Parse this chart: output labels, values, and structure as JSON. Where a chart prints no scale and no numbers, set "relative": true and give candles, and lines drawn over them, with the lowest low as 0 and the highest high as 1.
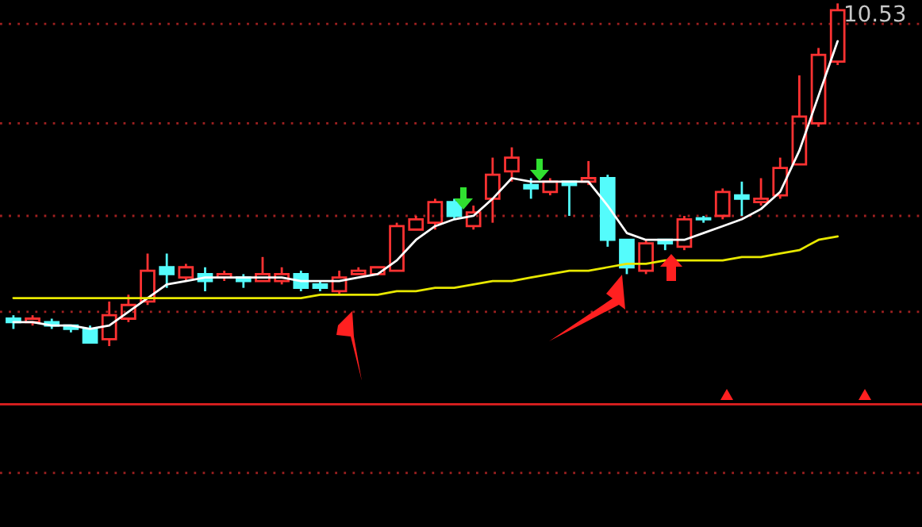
{
  "chart_data": {
    "type": "candlestick",
    "relative": true,
    "categories": [
      null,
      null,
      null,
      null,
      null,
      null,
      null,
      null,
      null,
      null,
      null,
      null,
      null,
      null,
      null,
      null,
      null,
      null,
      null,
      null,
      null,
      null,
      null,
      null,
      null,
      null,
      null,
      null,
      null,
      null,
      null,
      null,
      null,
      null,
      null,
      null,
      null,
      null,
      null,
      null,
      null,
      null,
      null,
      null
    ],
    "ohlc": [
      [
        0.08,
        0.09,
        0.05,
        0.07
      ],
      [
        0.07,
        0.09,
        0.06,
        0.08
      ],
      [
        0.07,
        0.08,
        0.05,
        0.06
      ],
      [
        0.06,
        0.06,
        0.04,
        0.05
      ],
      [
        0.05,
        0.06,
        0.01,
        0.01
      ],
      [
        0.02,
        0.13,
        0.0,
        0.09
      ],
      [
        0.08,
        0.15,
        0.07,
        0.12
      ],
      [
        0.13,
        0.27,
        0.12,
        0.22
      ],
      [
        0.23,
        0.27,
        0.17,
        0.21
      ],
      [
        0.2,
        0.24,
        0.19,
        0.23
      ],
      [
        0.21,
        0.23,
        0.16,
        0.19
      ],
      [
        0.2,
        0.22,
        0.19,
        0.21
      ],
      [
        0.2,
        0.21,
        0.17,
        0.19
      ],
      [
        0.19,
        0.26,
        0.19,
        0.21
      ],
      [
        0.19,
        0.23,
        0.18,
        0.21
      ],
      [
        0.21,
        0.22,
        0.16,
        0.17
      ],
      [
        0.18,
        0.19,
        0.16,
        0.17
      ],
      [
        0.16,
        0.22,
        0.15,
        0.2
      ],
      [
        0.21,
        0.23,
        0.21,
        0.22
      ],
      [
        0.21,
        0.23,
        0.21,
        0.23
      ],
      [
        0.22,
        0.36,
        0.22,
        0.35
      ],
      [
        0.34,
        0.38,
        0.34,
        0.37
      ],
      [
        0.36,
        0.43,
        0.34,
        0.42
      ],
      [
        0.42,
        0.43,
        0.37,
        0.38
      ],
      [
        0.35,
        0.41,
        0.34,
        0.39
      ],
      [
        0.43,
        0.55,
        0.36,
        0.5
      ],
      [
        0.51,
        0.58,
        0.48,
        0.55
      ],
      [
        0.47,
        0.49,
        0.43,
        0.46
      ],
      [
        0.45,
        0.49,
        0.44,
        0.48
      ],
      [
        0.48,
        0.48,
        0.38,
        0.47
      ],
      [
        0.48,
        0.54,
        0.47,
        0.49
      ],
      [
        0.49,
        0.5,
        0.29,
        0.31
      ],
      [
        0.31,
        0.31,
        0.21,
        0.23
      ],
      [
        0.22,
        0.31,
        0.21,
        0.3
      ],
      [
        0.31,
        0.31,
        0.28,
        0.3
      ],
      [
        0.29,
        0.38,
        0.28,
        0.37
      ],
      [
        0.37,
        0.38,
        0.36,
        0.37
      ],
      [
        0.38,
        0.46,
        0.37,
        0.45
      ],
      [
        0.44,
        0.48,
        0.38,
        0.43
      ],
      [
        0.42,
        0.49,
        0.41,
        0.43
      ],
      [
        0.44,
        0.55,
        0.43,
        0.52
      ],
      [
        0.53,
        0.79,
        0.53,
        0.67
      ],
      [
        0.65,
        0.87,
        0.64,
        0.85
      ],
      [
        0.83,
        1.0,
        0.82,
        0.98
      ]
    ],
    "colors": [
      "#54fcfc",
      "#ff3232",
      "#54fcfc",
      "#54fcfc",
      "#54fcfc",
      "#ff3232",
      "#ff3232",
      "#ff3232",
      "#54fcfc",
      "#ff3232",
      "#54fcfc",
      "#ff3232",
      "#54fcfc",
      "#ff3232",
      "#ff3232",
      "#54fcfc",
      "#54fcfc",
      "#ff3232",
      "#ff3232",
      "#ff3232",
      "#ff3232",
      "#ff3232",
      "#ff3232",
      "#54fcfc",
      "#ff3232",
      "#ff3232",
      "#ff3232",
      "#54fcfc",
      "#ff3232",
      "#54fcfc",
      "#ff3232",
      "#54fcfc",
      "#54fcfc",
      "#ff3232",
      "#54fcfc",
      "#ff3232",
      "#54fcfc",
      "#ff3232",
      "#54fcfc",
      "#ff3232",
      "#ff3232",
      "#ff3232",
      "#ff3232",
      "#ff3232"
    ],
    "series": [
      {
        "type": "line",
        "color": "#ffffff",
        "values": [
          0.07,
          0.07,
          0.06,
          0.06,
          0.05,
          0.06,
          0.1,
          0.14,
          0.18,
          0.19,
          0.2,
          0.2,
          0.2,
          0.2,
          0.2,
          0.19,
          0.19,
          0.19,
          0.2,
          0.21,
          0.25,
          0.31,
          0.35,
          0.37,
          0.38,
          0.43,
          0.49,
          0.48,
          0.48,
          0.48,
          0.48,
          0.41,
          0.33,
          0.31,
          0.31,
          0.31,
          0.33,
          0.35,
          0.37,
          0.4,
          0.45,
          0.57,
          0.73,
          0.89
        ]
      },
      {
        "type": "line",
        "color": "#e8e800",
        "values": [
          0.14,
          0.14,
          0.14,
          0.14,
          0.14,
          0.14,
          0.14,
          0.14,
          0.14,
          0.14,
          0.14,
          0.14,
          0.14,
          0.14,
          0.14,
          0.14,
          0.15,
          0.15,
          0.15,
          0.15,
          0.16,
          0.16,
          0.17,
          0.17,
          0.18,
          0.19,
          0.19,
          0.2,
          0.21,
          0.22,
          0.22,
          0.23,
          0.24,
          0.24,
          0.25,
          0.25,
          0.25,
          0.25,
          0.26,
          0.26,
          0.27,
          0.28,
          0.31,
          0.32
        ]
      }
    ],
    "ref_lines": [
      {
        "axis": "y",
        "value": -0.17,
        "color": "#e02020"
      },
      {
        "axis": "y",
        "value": 0.94,
        "color": "#a02020",
        "line_style": "dotted"
      },
      {
        "axis": "y",
        "value": 0.65,
        "color": "#a02020",
        "line_style": "dotted"
      },
      {
        "axis": "y",
        "value": 0.38,
        "color": "#a02020",
        "line_style": "dotted"
      },
      {
        "axis": "y",
        "value": 0.1,
        "color": "#a02020",
        "line_style": "dotted"
      },
      {
        "axis": "y",
        "value": -0.37,
        "color": "#a02020",
        "line_style": "dotted"
      }
    ],
    "annotations": [
      "10.53"
    ]
  }
}
